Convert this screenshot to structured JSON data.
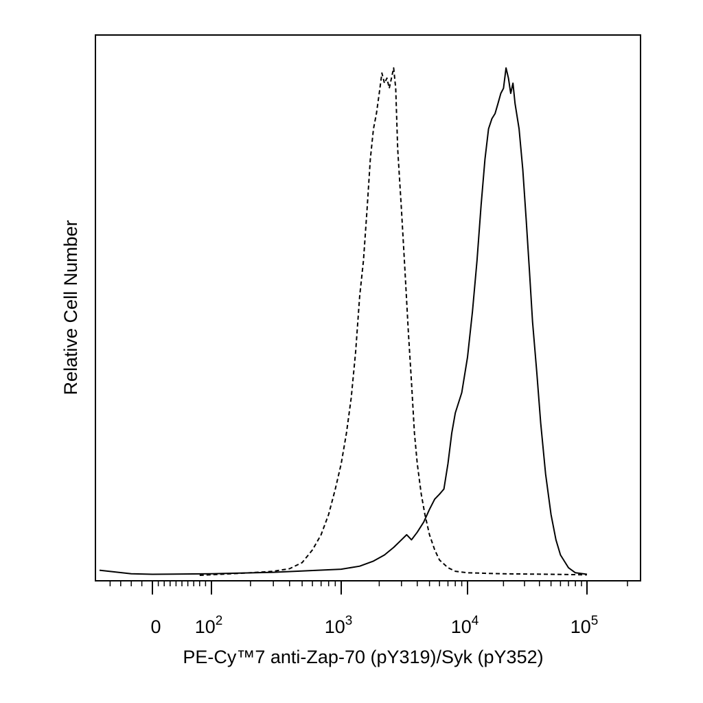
{
  "chart_data": {
    "type": "line",
    "xlabel": "PE-Cy™7 anti-Zap-70 (pY319)/Syk (pY352)",
    "ylabel": "Relative Cell Number",
    "x_scale": "biexponential",
    "xlim": [
      -50,
      250000
    ],
    "x_tick_labels": [
      {
        "label": "0",
        "value": 0
      },
      {
        "label": "10",
        "exp": "2",
        "value": 100
      },
      {
        "label": "10",
        "exp": "3",
        "value": 1000
      },
      {
        "label": "10",
        "exp": "4",
        "value": 10000
      },
      {
        "label": "10",
        "exp": "5",
        "value": 100000
      }
    ],
    "ylim": [
      0,
      100
    ],
    "grid": false,
    "series": [
      {
        "style": "dashed",
        "x": [
          80,
          200,
          300,
          400,
          500,
          600,
          700,
          800,
          900,
          1000,
          1100,
          1200,
          1300,
          1400,
          1500,
          1600,
          1700,
          1800,
          1900,
          2000,
          2100,
          2200,
          2300,
          2400,
          2500,
          2600,
          2700,
          2800,
          3000,
          3200,
          3400,
          3600,
          3800,
          4000,
          4300,
          4600,
          5000,
          5500,
          6000,
          7000,
          8000,
          10000,
          20000,
          50000,
          100000
        ],
        "y": [
          0,
          0.5,
          0.8,
          1.3,
          2.5,
          5,
          8,
          12,
          17,
          22,
          28,
          35,
          44,
          55,
          62,
          72,
          82,
          88,
          91,
          95,
          99,
          97,
          98,
          96,
          98,
          100,
          96,
          84,
          72,
          60,
          48,
          38,
          28,
          22,
          16,
          12,
          8,
          5,
          3,
          1.5,
          0.8,
          0.5,
          0.3,
          0.2,
          0.1
        ]
      },
      {
        "style": "solid",
        "x": [
          -50,
          -20,
          0,
          100,
          300,
          1000,
          1400,
          1800,
          2200,
          2600,
          3000,
          3300,
          3600,
          4000,
          4500,
          5000,
          5500,
          6000,
          6500,
          7000,
          7500,
          8000,
          9000,
          10000,
          11000,
          12000,
          13000,
          14000,
          15000,
          16000,
          17000,
          18000,
          19000,
          20000,
          21000,
          22000,
          23000,
          24000,
          25000,
          27000,
          29000,
          31000,
          33000,
          35000,
          38000,
          41000,
          45000,
          50000,
          55000,
          60000,
          70000,
          80000,
          100000
        ],
        "y": [
          1,
          0.3,
          0.2,
          0.3,
          0.6,
          1.2,
          1.8,
          2.8,
          4,
          5.5,
          7,
          8,
          7,
          8.5,
          10.5,
          13,
          15,
          16,
          17,
          22,
          28,
          32,
          36,
          43,
          52,
          62,
          73,
          82,
          88,
          90,
          91,
          93,
          95,
          96,
          100,
          98,
          95,
          97,
          93,
          88,
          80,
          70,
          60,
          50,
          40,
          30,
          20,
          12,
          7,
          4,
          1.5,
          0.5,
          0.2
        ]
      }
    ]
  }
}
